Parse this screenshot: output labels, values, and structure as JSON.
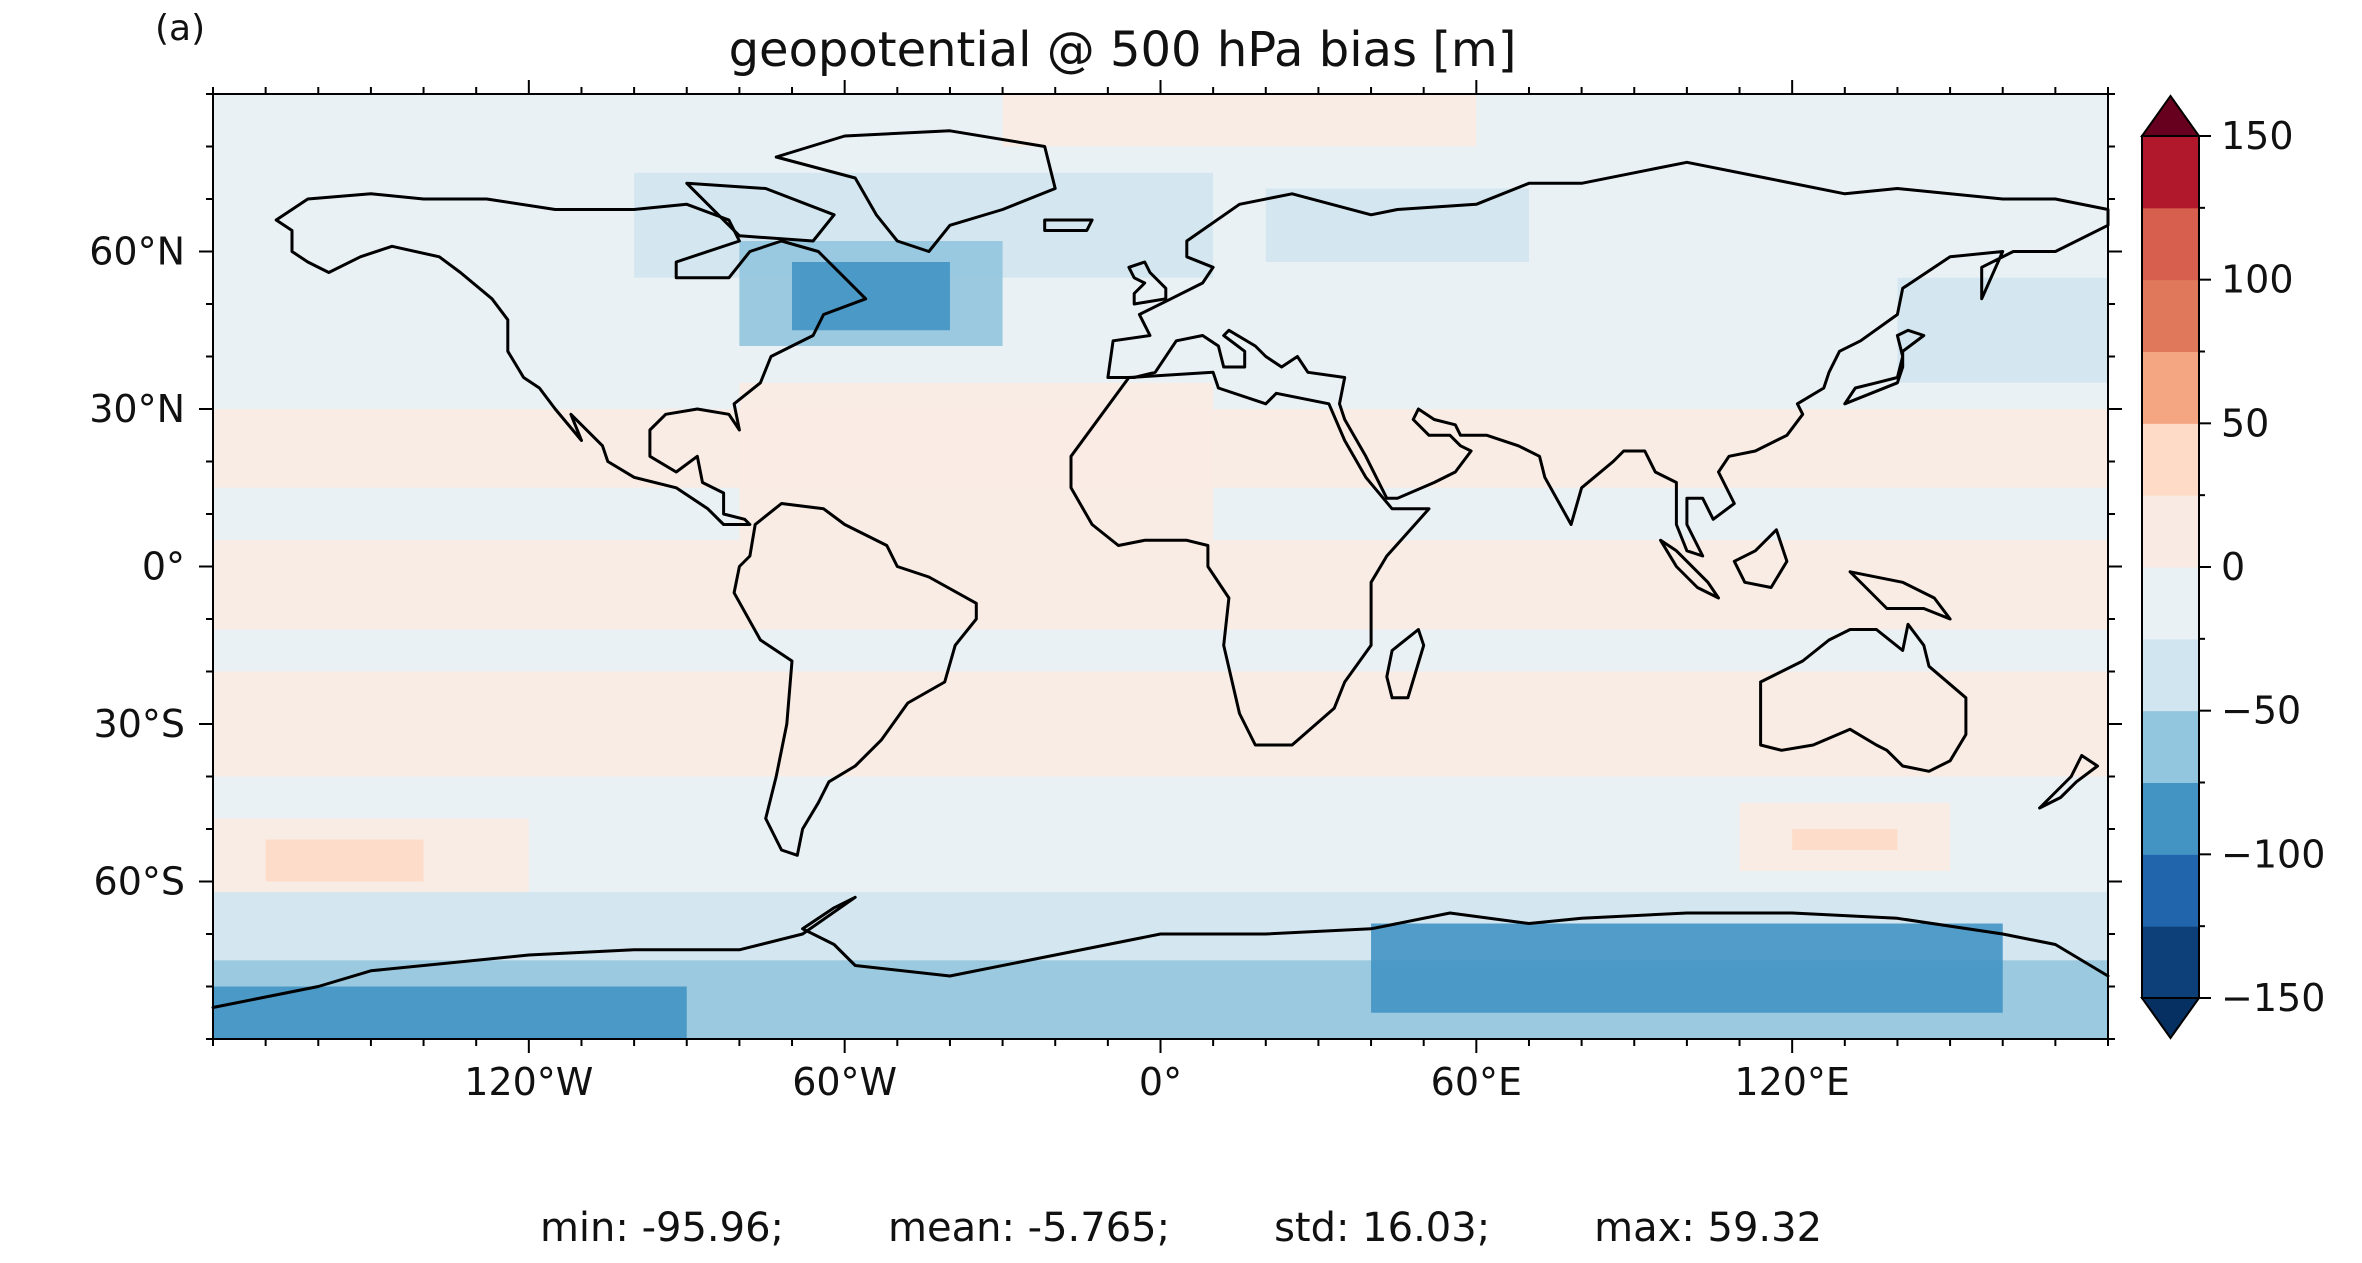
{
  "panel_label": "(a)",
  "title": "geopotential @ 500 hPa bias [m]",
  "axes": {
    "lon_ticks": [
      {
        "value": -120,
        "label": "120°W"
      },
      {
        "value": -60,
        "label": "60°W"
      },
      {
        "value": 0,
        "label": "0°"
      },
      {
        "value": 60,
        "label": "60°E"
      },
      {
        "value": 120,
        "label": "120°E"
      }
    ],
    "lat_ticks": [
      {
        "value": 60,
        "label": "60°N"
      },
      {
        "value": 30,
        "label": "30°N"
      },
      {
        "value": 0,
        "label": "0°"
      },
      {
        "value": -30,
        "label": "30°S"
      },
      {
        "value": -60,
        "label": "60°S"
      }
    ],
    "lon_range": [
      -180,
      180
    ],
    "lat_range": [
      -90,
      90
    ]
  },
  "colorbar": {
    "ticks": [
      "150",
      "100",
      "50",
      "0",
      "−50",
      "−100",
      "−150"
    ],
    "tick_values": [
      150,
      100,
      50,
      0,
      -50,
      -100,
      -150
    ],
    "bounds": [
      -150,
      -125,
      -100,
      -75,
      -50,
      -25,
      0,
      25,
      50,
      75,
      100,
      125,
      150
    ],
    "colors": [
      "#0d3f78",
      "#2166ac",
      "#4393c3",
      "#92c5de",
      "#d1e5f0",
      "#eaf1f5",
      "#f9ebe3",
      "#fddbc7",
      "#f4a582",
      "#e0785c",
      "#d6604d",
      "#b2182b"
    ],
    "under_color": "#053061",
    "over_color": "#67001f",
    "extend": "both"
  },
  "stats": {
    "min": "min: -95.96;",
    "mean": "mean: -5.765;",
    "std": "std: 16.03;",
    "max": "max: 59.32"
  }
}
